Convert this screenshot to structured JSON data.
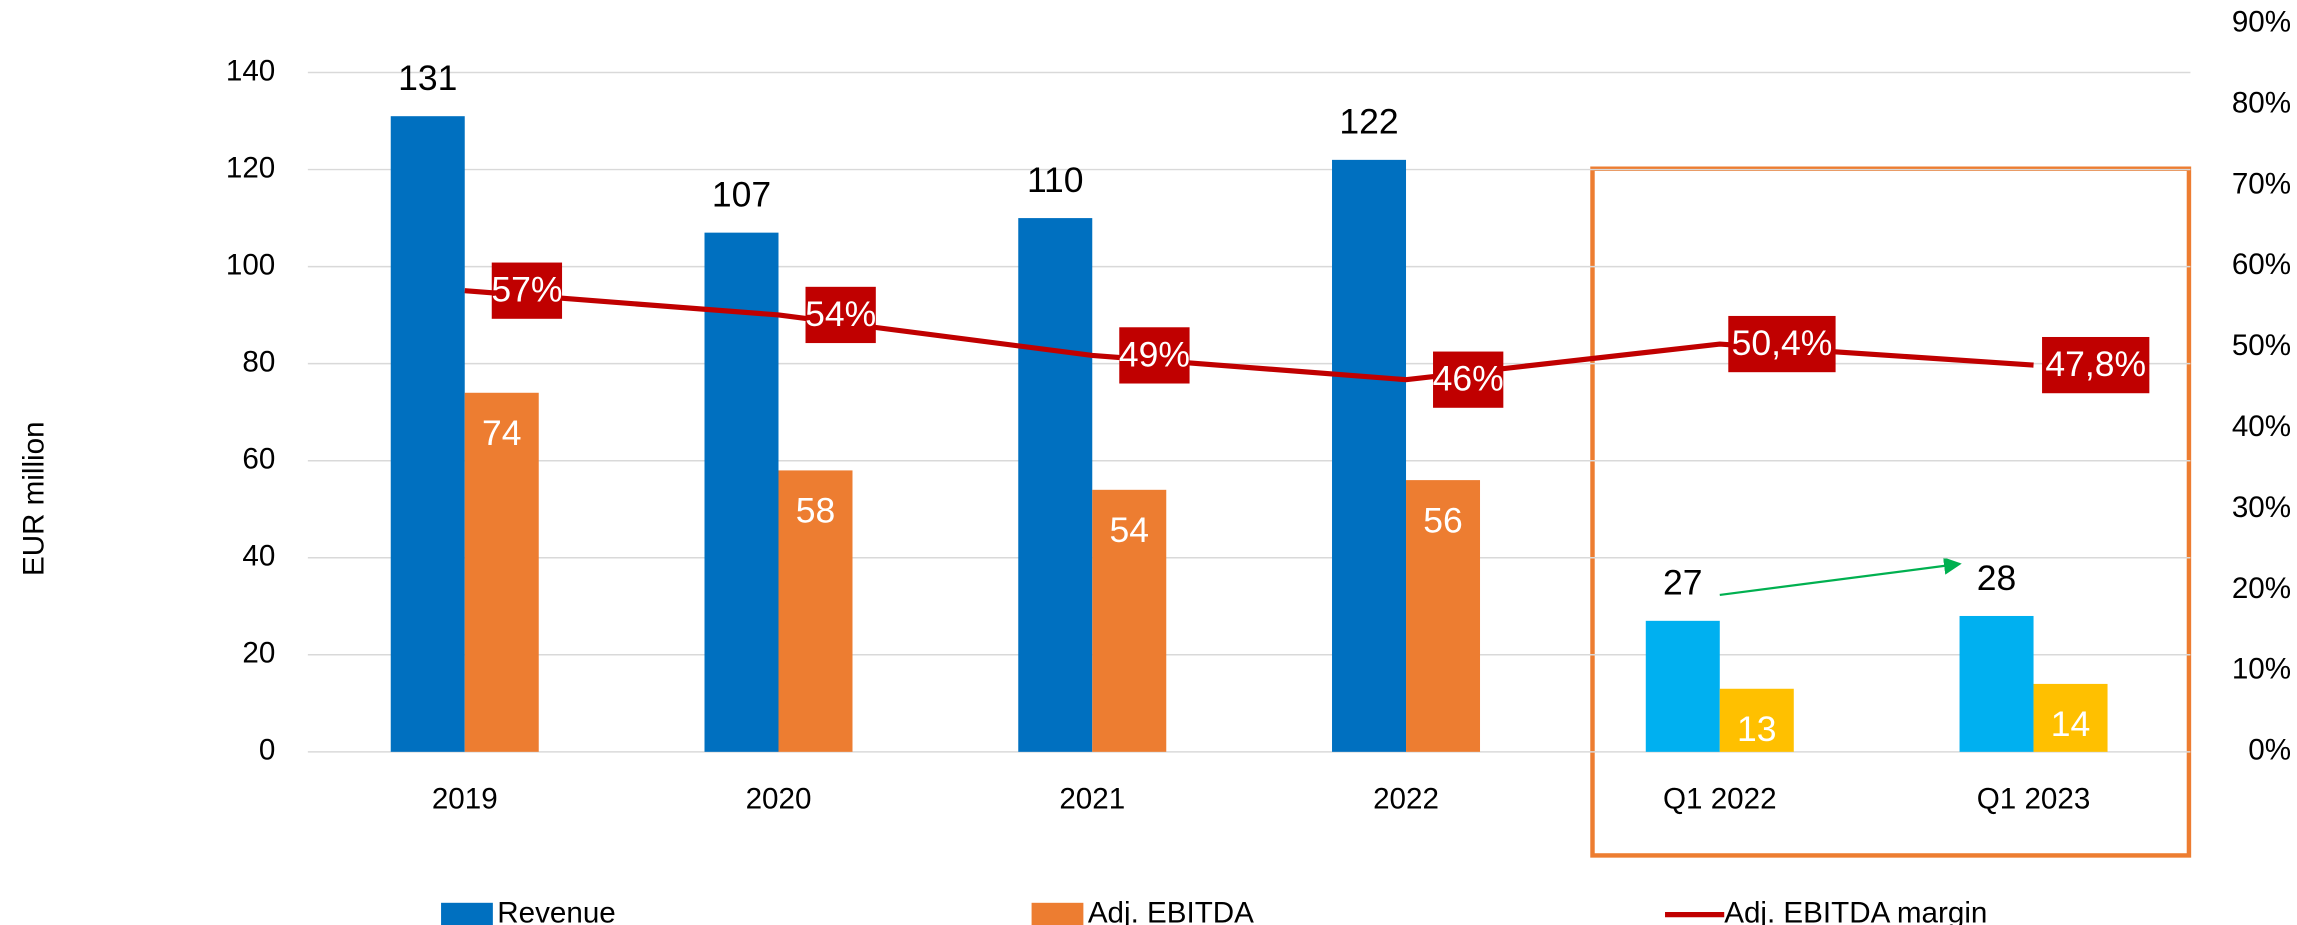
{
  "chart_data": {
    "type": "bar",
    "y_label": "EUR million",
    "categories": [
      "2019",
      "2020",
      "2021",
      "2022",
      "Q1 2022",
      "Q1 2023"
    ],
    "series": [
      {
        "name": "Revenue",
        "type": "bar",
        "color": "#0070C0",
        "colors": [
          "#0070C0",
          "#0070C0",
          "#0070C0",
          "#0070C0",
          "#00B0F0",
          "#00B0F0"
        ],
        "values": [
          131,
          107,
          110,
          122,
          27,
          28
        ]
      },
      {
        "name": "Adj. EBITDA",
        "type": "bar",
        "color": "#ED7D31",
        "colors": [
          "#ED7D31",
          "#ED7D31",
          "#ED7D31",
          "#ED7D31",
          "#FFC000",
          "#FFC000"
        ],
        "values": [
          74,
          58,
          54,
          56,
          13,
          14
        ]
      },
      {
        "name": "Adj. EBITDA margin",
        "type": "line",
        "axis": "y2",
        "color": "#C00000",
        "values": [
          57,
          54,
          49,
          46,
          50.4,
          47.8
        ],
        "value_labels": [
          "57%",
          "54%",
          "49%",
          "46%",
          "50,4%",
          "47,8%"
        ]
      }
    ],
    "ylim": [
      0,
      140
    ],
    "yticks": [
      0,
      20,
      40,
      60,
      80,
      100,
      120,
      140
    ],
    "y2lim": [
      0,
      90
    ],
    "y2ticks": [
      {
        "value": 0,
        "label": "0%"
      },
      {
        "value": 10,
        "label": "10%"
      },
      {
        "value": 20,
        "label": "20%"
      },
      {
        "value": 30,
        "label": "30%"
      },
      {
        "value": 40,
        "label": "40%"
      },
      {
        "value": 50,
        "label": "50%"
      },
      {
        "value": 60,
        "label": "60%"
      },
      {
        "value": 70,
        "label": "70%"
      },
      {
        "value": 80,
        "label": "80%"
      },
      {
        "value": 90,
        "label": "90%"
      }
    ],
    "grid": true,
    "legend": "bottom"
  }
}
